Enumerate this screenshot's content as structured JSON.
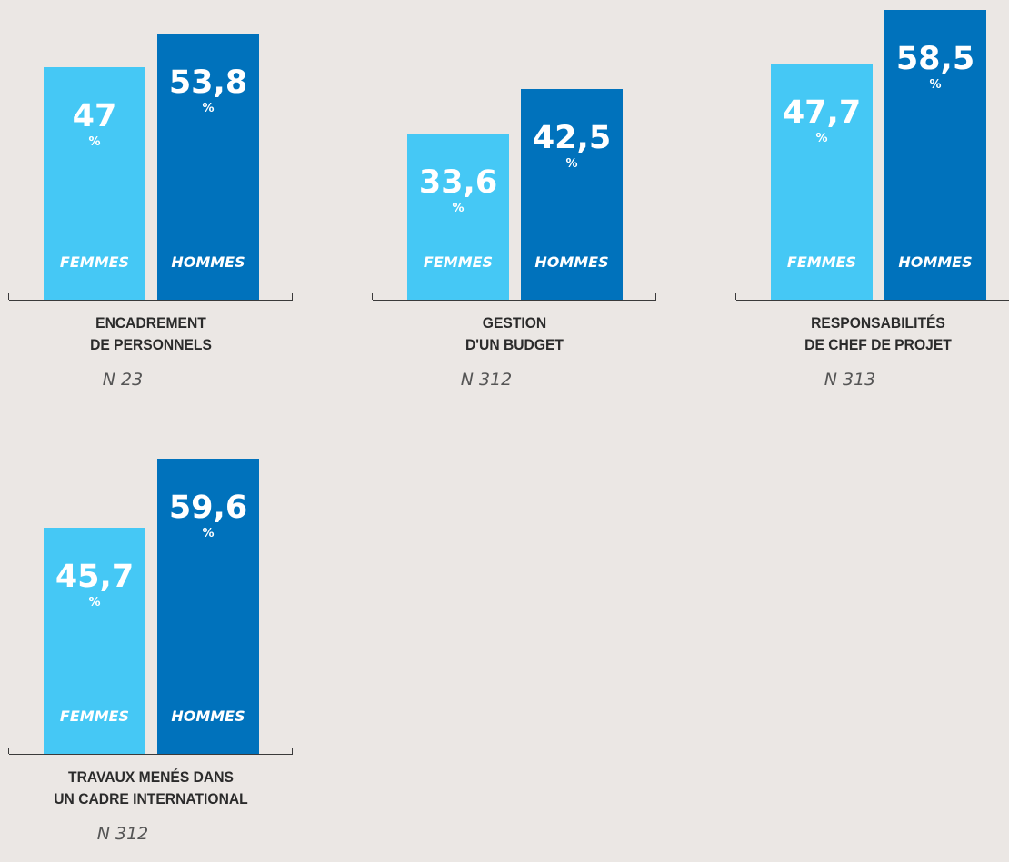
{
  "colors": {
    "femmes": "#45c8f5",
    "hommes": "#0072bc",
    "background": "#ebe7e4",
    "axis": "#3a3a3a"
  },
  "chart_data": [
    {
      "type": "bar",
      "title_lines": [
        "ENCADREMENT",
        "DE PERSONNELS"
      ],
      "n_label": "N 23",
      "categories": [
        "FEMMES",
        "HOMMES"
      ],
      "value_labels": [
        "47",
        "53,8"
      ],
      "values": [
        47,
        53.8
      ],
      "unit": "%"
    },
    {
      "type": "bar",
      "title_lines": [
        "GESTION",
        "D'UN BUDGET"
      ],
      "n_label": "N 312",
      "categories": [
        "FEMMES",
        "HOMMES"
      ],
      "value_labels": [
        "33,6",
        "42,5"
      ],
      "values": [
        33.6,
        42.5
      ],
      "unit": "%"
    },
    {
      "type": "bar",
      "title_lines": [
        "RESPONSABILITÉS",
        "DE CHEF DE PROJET"
      ],
      "n_label": "N 313",
      "categories": [
        "FEMMES",
        "HOMMES"
      ],
      "value_labels": [
        "47,7",
        "58,5"
      ],
      "values": [
        47.7,
        58.5
      ],
      "unit": "%"
    },
    {
      "type": "bar",
      "title_lines": [
        "TRAVAUX MENÉS DANS",
        "UN CADRE INTERNATIONAL"
      ],
      "n_label": "N 312",
      "categories": [
        "FEMMES",
        "HOMMES"
      ],
      "value_labels": [
        "45,7",
        "59,6"
      ],
      "values": [
        45.7,
        59.6
      ],
      "unit": "%"
    }
  ]
}
